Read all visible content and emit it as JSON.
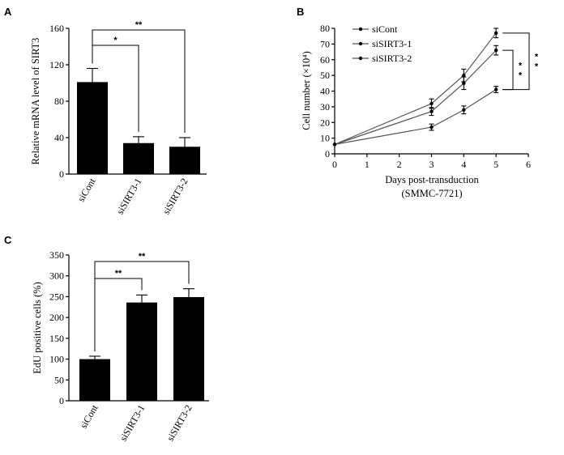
{
  "chart_data": [
    {
      "panel": "A",
      "type": "bar",
      "ylabel": "Relative mRNA level of SIRT3",
      "xlabel": "",
      "ylim": [
        0,
        160
      ],
      "yticks": [
        0,
        40,
        80,
        120,
        160
      ],
      "categories": [
        "siCont",
        "siSIRT3-1",
        "siSIRT3-2"
      ],
      "values": [
        101,
        34,
        30
      ],
      "errors": [
        15,
        7,
        10
      ],
      "bar_color": "#000000",
      "significance": [
        {
          "from": 0,
          "to": 1,
          "label": "*"
        },
        {
          "from": 0,
          "to": 2,
          "label": "**"
        }
      ]
    },
    {
      "panel": "B",
      "type": "line",
      "ylabel": "Cell number (×10⁴)",
      "xlabel": "Days post-transduction",
      "xlabel_2": "(SMMC-7721)",
      "xlim": [
        0,
        6
      ],
      "ylim": [
        0,
        80
      ],
      "xticks": [
        0,
        1,
        2,
        3,
        4,
        5,
        6
      ],
      "yticks": [
        0,
        10,
        20,
        30,
        40,
        50,
        60,
        70,
        80
      ],
      "legend_position": "top-left",
      "series": [
        {
          "name": "siCont",
          "x": [
            0,
            3,
            4,
            5
          ],
          "values": [
            6,
            32,
            50,
            77
          ],
          "errors": [
            0,
            3,
            4,
            3
          ],
          "marker": "•"
        },
        {
          "name": "siSIRT3-1",
          "x": [
            0,
            3,
            4,
            5
          ],
          "values": [
            6,
            27,
            45,
            66
          ],
          "errors": [
            0,
            2.5,
            4,
            3
          ],
          "marker": "•"
        },
        {
          "name": "siSIRT3-2",
          "x": [
            0,
            3,
            4,
            5
          ],
          "values": [
            6,
            17,
            28,
            41
          ],
          "errors": [
            0,
            2,
            2.5,
            2
          ],
          "marker": "•"
        }
      ],
      "significance": [
        {
          "from": 0,
          "to": 2,
          "label": "**"
        },
        {
          "from": 1,
          "to": 2,
          "label": "**"
        }
      ]
    },
    {
      "panel": "C",
      "type": "bar",
      "ylabel": "EdU positive cells (%)",
      "xlabel": "",
      "ylim": [
        0,
        350
      ],
      "yticks": [
        0,
        50,
        100,
        150,
        200,
        250,
        300,
        350
      ],
      "categories": [
        "siCont",
        "siSIRT3-1",
        "siSIRT3-2"
      ],
      "values": [
        100,
        236,
        249
      ],
      "errors": [
        7,
        18,
        20
      ],
      "bar_color": "#000000",
      "significance": [
        {
          "from": 0,
          "to": 1,
          "label": "**"
        },
        {
          "from": 0,
          "to": 2,
          "label": "**"
        }
      ]
    }
  ]
}
